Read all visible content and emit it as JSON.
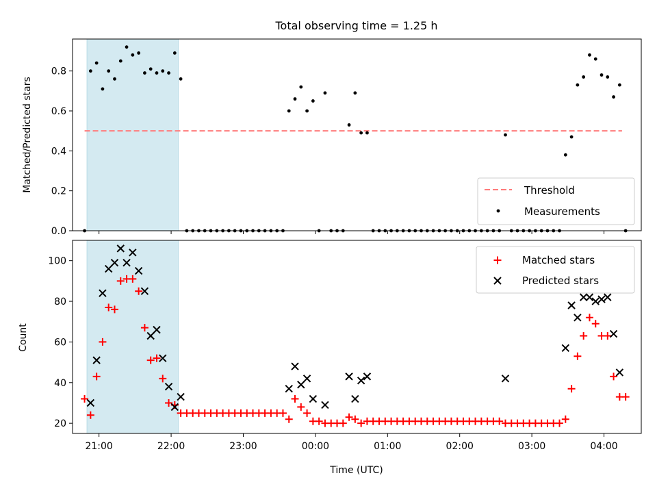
{
  "chart_data": [
    {
      "type": "scatter",
      "title": "Total observing time = 1.25 h",
      "ylabel": "Matched/Predicted stars",
      "xlabel": "",
      "ylim": [
        0,
        0.96
      ],
      "yticks": [
        0.0,
        0.2,
        0.4,
        0.6,
        0.8
      ],
      "ytick_labels": [
        "0.0",
        "0.2",
        "0.4",
        "0.6",
        "0.8"
      ],
      "shaded_interval": {
        "x0": "20:50",
        "x1": "22:06",
        "color": "#d4eaf1"
      },
      "threshold": {
        "name": "Threshold",
        "value": 0.5,
        "x0": "20:48",
        "x1": "04:15",
        "color": "#ff7b7b"
      },
      "legend": {
        "placement": "lower-right",
        "entries": [
          "Threshold",
          "Measurements"
        ]
      },
      "series": [
        {
          "name": "Measurements",
          "color": "#000000",
          "points": [
            [
              "20:48",
              0.0
            ],
            [
              "20:53",
              0.8
            ],
            [
              "20:58",
              0.84
            ],
            [
              "21:03",
              0.71
            ],
            [
              "21:08",
              0.8
            ],
            [
              "21:13",
              0.76
            ],
            [
              "21:18",
              0.85
            ],
            [
              "21:23",
              0.92
            ],
            [
              "21:28",
              0.88
            ],
            [
              "21:33",
              0.89
            ],
            [
              "21:38",
              0.79
            ],
            [
              "21:43",
              0.81
            ],
            [
              "21:48",
              0.79
            ],
            [
              "21:53",
              0.8
            ],
            [
              "21:58",
              0.79
            ],
            [
              "22:03",
              0.89
            ],
            [
              "22:08",
              0.76
            ],
            [
              "22:13",
              0.0
            ],
            [
              "22:18",
              0.0
            ],
            [
              "22:23",
              0.0
            ],
            [
              "22:28",
              0.0
            ],
            [
              "22:33",
              0.0
            ],
            [
              "22:38",
              0.0
            ],
            [
              "22:43",
              0.0
            ],
            [
              "22:48",
              0.0
            ],
            [
              "22:53",
              0.0
            ],
            [
              "22:58",
              0.0
            ],
            [
              "23:03",
              0.0
            ],
            [
              "23:08",
              0.0
            ],
            [
              "23:13",
              0.0
            ],
            [
              "23:18",
              0.0
            ],
            [
              "23:23",
              0.0
            ],
            [
              "23:28",
              0.0
            ],
            [
              "23:33",
              0.0
            ],
            [
              "23:38",
              0.6
            ],
            [
              "23:43",
              0.66
            ],
            [
              "23:48",
              0.72
            ],
            [
              "23:53",
              0.6
            ],
            [
              "23:58",
              0.65
            ],
            [
              "00:03",
              0.0
            ],
            [
              "00:08",
              0.69
            ],
            [
              "00:13",
              0.0
            ],
            [
              "00:18",
              0.0
            ],
            [
              "00:23",
              0.0
            ],
            [
              "00:28",
              0.53
            ],
            [
              "00:33",
              0.69
            ],
            [
              "00:38",
              0.49
            ],
            [
              "00:43",
              0.49
            ],
            [
              "00:48",
              0.0
            ],
            [
              "00:53",
              0.0
            ],
            [
              "00:58",
              0.0
            ],
            [
              "01:03",
              0.0
            ],
            [
              "01:08",
              0.0
            ],
            [
              "01:13",
              0.0
            ],
            [
              "01:18",
              0.0
            ],
            [
              "01:23",
              0.0
            ],
            [
              "01:28",
              0.0
            ],
            [
              "01:33",
              0.0
            ],
            [
              "01:38",
              0.0
            ],
            [
              "01:43",
              0.0
            ],
            [
              "01:48",
              0.0
            ],
            [
              "01:53",
              0.0
            ],
            [
              "01:58",
              0.0
            ],
            [
              "02:03",
              0.0
            ],
            [
              "02:08",
              0.0
            ],
            [
              "02:13",
              0.0
            ],
            [
              "02:18",
              0.0
            ],
            [
              "02:23",
              0.0
            ],
            [
              "02:28",
              0.0
            ],
            [
              "02:33",
              0.0
            ],
            [
              "02:38",
              0.48
            ],
            [
              "02:43",
              0.0
            ],
            [
              "02:48",
              0.0
            ],
            [
              "02:53",
              0.0
            ],
            [
              "02:58",
              0.0
            ],
            [
              "03:03",
              0.0
            ],
            [
              "03:08",
              0.0
            ],
            [
              "03:13",
              0.0
            ],
            [
              "03:18",
              0.0
            ],
            [
              "03:23",
              0.0
            ],
            [
              "03:28",
              0.38
            ],
            [
              "03:33",
              0.47
            ],
            [
              "03:38",
              0.73
            ],
            [
              "03:43",
              0.77
            ],
            [
              "03:48",
              0.88
            ],
            [
              "03:53",
              0.86
            ],
            [
              "03:58",
              0.78
            ],
            [
              "04:03",
              0.77
            ],
            [
              "04:08",
              0.67
            ],
            [
              "04:13",
              0.73
            ],
            [
              "04:18",
              0.0
            ]
          ]
        }
      ]
    },
    {
      "type": "scatter",
      "ylabel": "Count",
      "xlabel": "Time (UTC)",
      "ylim": [
        15,
        110
      ],
      "yticks": [
        20,
        40,
        60,
        80,
        100
      ],
      "ytick_labels": [
        "20",
        "40",
        "60",
        "80",
        "100"
      ],
      "xticks": [
        "21:00",
        "22:00",
        "23:00",
        "00:00",
        "01:00",
        "02:00",
        "03:00",
        "04:00"
      ],
      "xtick_labels": [
        "21:00",
        "22:00",
        "23:00",
        "00:00",
        "01:00",
        "02:00",
        "03:00",
        "04:00"
      ],
      "shaded_interval": {
        "x0": "20:50",
        "x1": "22:06",
        "color": "#d4eaf1"
      },
      "legend": {
        "placement": "upper-right",
        "entries": [
          "Matched stars",
          "Predicted stars"
        ]
      },
      "series": [
        {
          "name": "Matched stars",
          "marker": "plus",
          "color": "#ff0000",
          "points": [
            [
              "20:48",
              32
            ],
            [
              "20:53",
              24
            ],
            [
              "20:58",
              43
            ],
            [
              "21:03",
              60
            ],
            [
              "21:08",
              77
            ],
            [
              "21:13",
              76
            ],
            [
              "21:18",
              90
            ],
            [
              "21:23",
              91
            ],
            [
              "21:28",
              91
            ],
            [
              "21:33",
              85
            ],
            [
              "21:38",
              67
            ],
            [
              "21:43",
              51
            ],
            [
              "21:48",
              52
            ],
            [
              "21:53",
              42
            ],
            [
              "21:58",
              30
            ],
            [
              "22:03",
              29
            ],
            [
              "22:08",
              25
            ],
            [
              "22:13",
              25
            ],
            [
              "22:18",
              25
            ],
            [
              "22:23",
              25
            ],
            [
              "22:28",
              25
            ],
            [
              "22:33",
              25
            ],
            [
              "22:38",
              25
            ],
            [
              "22:43",
              25
            ],
            [
              "22:48",
              25
            ],
            [
              "22:53",
              25
            ],
            [
              "22:58",
              25
            ],
            [
              "23:03",
              25
            ],
            [
              "23:08",
              25
            ],
            [
              "23:13",
              25
            ],
            [
              "23:18",
              25
            ],
            [
              "23:23",
              25
            ],
            [
              "23:28",
              25
            ],
            [
              "23:33",
              25
            ],
            [
              "23:38",
              22
            ],
            [
              "23:43",
              32
            ],
            [
              "23:48",
              28
            ],
            [
              "23:53",
              25
            ],
            [
              "23:58",
              21
            ],
            [
              "00:03",
              21
            ],
            [
              "00:08",
              20
            ],
            [
              "00:13",
              20
            ],
            [
              "00:18",
              20
            ],
            [
              "00:23",
              20
            ],
            [
              "00:28",
              23
            ],
            [
              "00:33",
              22
            ],
            [
              "00:38",
              20
            ],
            [
              "00:43",
              21
            ],
            [
              "00:48",
              21
            ],
            [
              "00:53",
              21
            ],
            [
              "00:58",
              21
            ],
            [
              "01:03",
              21
            ],
            [
              "01:08",
              21
            ],
            [
              "01:13",
              21
            ],
            [
              "01:18",
              21
            ],
            [
              "01:23",
              21
            ],
            [
              "01:28",
              21
            ],
            [
              "01:33",
              21
            ],
            [
              "01:38",
              21
            ],
            [
              "01:43",
              21
            ],
            [
              "01:48",
              21
            ],
            [
              "01:53",
              21
            ],
            [
              "01:58",
              21
            ],
            [
              "02:03",
              21
            ],
            [
              "02:08",
              21
            ],
            [
              "02:13",
              21
            ],
            [
              "02:18",
              21
            ],
            [
              "02:23",
              21
            ],
            [
              "02:28",
              21
            ],
            [
              "02:33",
              21
            ],
            [
              "02:38",
              20
            ],
            [
              "02:43",
              20
            ],
            [
              "02:48",
              20
            ],
            [
              "02:53",
              20
            ],
            [
              "02:58",
              20
            ],
            [
              "03:03",
              20
            ],
            [
              "03:08",
              20
            ],
            [
              "03:13",
              20
            ],
            [
              "03:18",
              20
            ],
            [
              "03:23",
              20
            ],
            [
              "03:28",
              22
            ],
            [
              "03:33",
              37
            ],
            [
              "03:38",
              53
            ],
            [
              "03:43",
              63
            ],
            [
              "03:48",
              72
            ],
            [
              "03:53",
              69
            ],
            [
              "03:58",
              63
            ],
            [
              "04:03",
              63
            ],
            [
              "04:08",
              43
            ],
            [
              "04:13",
              33
            ],
            [
              "04:18",
              33
            ]
          ]
        },
        {
          "name": "Predicted stars",
          "marker": "x",
          "color": "#000000",
          "points": [
            [
              "20:53",
              30
            ],
            [
              "20:58",
              51
            ],
            [
              "21:03",
              84
            ],
            [
              "21:08",
              96
            ],
            [
              "21:13",
              99
            ],
            [
              "21:18",
              106
            ],
            [
              "21:23",
              99
            ],
            [
              "21:28",
              104
            ],
            [
              "21:33",
              95
            ],
            [
              "21:38",
              85
            ],
            [
              "21:43",
              63
            ],
            [
              "21:48",
              66
            ],
            [
              "21:53",
              52
            ],
            [
              "21:58",
              38
            ],
            [
              "22:03",
              28
            ],
            [
              "22:08",
              33
            ],
            [
              "23:38",
              37
            ],
            [
              "23:43",
              48
            ],
            [
              "23:48",
              39
            ],
            [
              "23:53",
              42
            ],
            [
              "23:58",
              32
            ],
            [
              "00:08",
              29
            ],
            [
              "00:28",
              43
            ],
            [
              "00:33",
              32
            ],
            [
              "00:38",
              41
            ],
            [
              "00:43",
              43
            ],
            [
              "02:38",
              42
            ],
            [
              "03:28",
              57
            ],
            [
              "03:33",
              78
            ],
            [
              "03:38",
              72
            ],
            [
              "03:43",
              82
            ],
            [
              "03:48",
              82
            ],
            [
              "03:53",
              80
            ],
            [
              "03:58",
              81
            ],
            [
              "04:03",
              82
            ],
            [
              "04:08",
              64
            ],
            [
              "04:13",
              45
            ]
          ]
        }
      ]
    }
  ]
}
